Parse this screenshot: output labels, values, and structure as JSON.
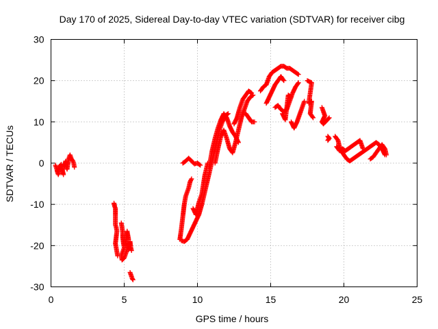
{
  "chart_data": {
    "type": "scatter",
    "title": "Day 170 of 2025, Sidereal Day-to-day VTEC variation (SDTVAR) for receiver cibg",
    "xlabel": "GPS time / hours",
    "ylabel": "SDTVAR / TECUs",
    "xlim": [
      0,
      25
    ],
    "ylim": [
      -30,
      30
    ],
    "xticks": [
      0,
      5,
      10,
      15,
      20,
      25
    ],
    "yticks": [
      -30,
      -20,
      -10,
      0,
      10,
      20,
      30
    ],
    "grid": true,
    "marker": "+",
    "color": "#ff0000",
    "series": [
      {
        "name": "SDTVAR",
        "segments": [
          [
            [
              0.3,
              -0.5
            ],
            [
              0.4,
              -1.5
            ],
            [
              0.45,
              -2.3
            ],
            [
              0.5,
              -2.8
            ],
            [
              0.55,
              -1.8
            ],
            [
              0.6,
              -0.8
            ],
            [
              0.7,
              -0.3
            ],
            [
              0.75,
              -1.2
            ],
            [
              0.8,
              -2.0
            ],
            [
              0.85,
              -2.8
            ]
          ],
          [
            [
              0.9,
              -1.0
            ],
            [
              0.95,
              -0.2
            ],
            [
              1.0,
              0.5
            ],
            [
              1.05,
              -1.0
            ],
            [
              1.1,
              -1.5
            ],
            [
              1.2,
              0.8
            ],
            [
              1.25,
              1.5
            ],
            [
              1.3,
              2.0
            ],
            [
              1.4,
              1.0
            ],
            [
              1.5,
              0.5
            ],
            [
              1.55,
              0.0
            ],
            [
              1.6,
              -1.0
            ]
          ],
          [
            [
              4.3,
              -9.7
            ],
            [
              4.35,
              -10.5
            ],
            [
              4.4,
              -11.0
            ],
            [
              4.4,
              -15.0
            ],
            [
              4.45,
              -15.5
            ],
            [
              4.5,
              -16.5
            ],
            [
              4.4,
              -19.5
            ],
            [
              4.45,
              -20.5
            ],
            [
              4.5,
              -21.5
            ],
            [
              4.55,
              -22.5
            ]
          ],
          [
            [
              4.8,
              -14.5
            ],
            [
              4.85,
              -15.5
            ],
            [
              4.9,
              -17.0
            ],
            [
              4.9,
              -18.0
            ],
            [
              4.95,
              -19.5
            ],
            [
              5.0,
              -20.5
            ],
            [
              4.8,
              -22.5
            ],
            [
              4.85,
              -23.5
            ],
            [
              5.0,
              -23.0
            ],
            [
              5.1,
              -22.0
            ],
            [
              5.2,
              -21.0
            ],
            [
              5.25,
              -19.5
            ],
            [
              5.3,
              -21.0
            ],
            [
              5.35,
              -20.0
            ],
            [
              5.4,
              -19.0
            ],
            [
              5.45,
              -20.5
            ],
            [
              5.5,
              -21.2
            ]
          ],
          [
            [
              5.1,
              -20.0
            ],
            [
              5.2,
              -16.5
            ],
            [
              5.25,
              -17.5
            ],
            [
              5.3,
              -18.5
            ]
          ],
          [
            [
              5.4,
              -26.5
            ],
            [
              5.45,
              -27.0
            ],
            [
              5.5,
              -27.5
            ],
            [
              5.55,
              -28.0
            ],
            [
              5.6,
              -28.3
            ]
          ],
          [
            [
              8.8,
              -18.5
            ],
            [
              8.9,
              -16.0
            ],
            [
              9.0,
              -13.0
            ],
            [
              9.1,
              -10.0
            ],
            [
              9.2,
              -8.0
            ],
            [
              9.4,
              -6.0
            ],
            [
              9.5,
              -4.5
            ],
            [
              9.6,
              -3.8
            ]
          ],
          [
            [
              8.9,
              -18.8
            ],
            [
              9.1,
              -19.0
            ],
            [
              9.3,
              -18.5
            ],
            [
              9.5,
              -17.0
            ],
            [
              9.7,
              -15.5
            ],
            [
              9.9,
              -14.0
            ],
            [
              10.1,
              -12.5
            ],
            [
              10.3,
              -10.0
            ],
            [
              10.5,
              -7.0
            ],
            [
              10.7,
              -4.0
            ],
            [
              10.9,
              -1.0
            ],
            [
              11.1,
              2.0
            ],
            [
              11.3,
              5.0
            ],
            [
              11.5,
              8.0
            ],
            [
              11.7,
              10.0
            ],
            [
              11.9,
              11.5
            ],
            [
              12.1,
              12.0
            ]
          ],
          [
            [
              9.7,
              -11.0
            ],
            [
              9.9,
              -12.5
            ],
            [
              10.1,
              -9.5
            ],
            [
              10.3,
              -7.5
            ],
            [
              10.5,
              -3.0
            ],
            [
              10.7,
              0.0
            ]
          ],
          [
            [
              9.0,
              0.0
            ],
            [
              9.2,
              0.5
            ],
            [
              9.4,
              1.2
            ],
            [
              9.6,
              0.5
            ],
            [
              9.8,
              -0.2
            ],
            [
              10.0,
              0.0
            ],
            [
              10.2,
              -0.5
            ]
          ],
          [
            [
              10.8,
              -1.0
            ],
            [
              11.0,
              3.0
            ],
            [
              11.2,
              6.0
            ],
            [
              11.4,
              8.5
            ],
            [
              11.6,
              10.5
            ],
            [
              11.8,
              12.0
            ],
            [
              12.0,
              11.0
            ],
            [
              12.2,
              9.0
            ],
            [
              12.4,
              7.5
            ],
            [
              12.6,
              6.5
            ],
            [
              12.8,
              5.0
            ]
          ],
          [
            [
              11.2,
              0.0
            ],
            [
              11.4,
              3.5
            ],
            [
              11.6,
              6.5
            ],
            [
              11.8,
              8.0
            ],
            [
              12.0,
              6.0
            ],
            [
              12.2,
              3.5
            ],
            [
              12.4,
              2.5
            ],
            [
              12.6,
              5.0
            ],
            [
              12.8,
              8.0
            ],
            [
              13.0,
              11.0
            ],
            [
              13.2,
              13.0
            ],
            [
              13.4,
              15.0
            ],
            [
              13.6,
              16.0
            ],
            [
              13.8,
              16.5
            ]
          ],
          [
            [
              12.5,
              9.5
            ],
            [
              12.7,
              11.0
            ],
            [
              12.9,
              13.5
            ],
            [
              13.1,
              15.5
            ],
            [
              13.3,
              16.5
            ],
            [
              13.5,
              17.5
            ],
            [
              13.7,
              17.0
            ]
          ],
          [
            [
              13.3,
              12.0
            ],
            [
              13.5,
              11.0
            ],
            [
              13.7,
              10.0
            ],
            [
              13.9,
              10.0
            ]
          ],
          [
            [
              14.3,
              17.5
            ],
            [
              14.5,
              18.5
            ],
            [
              14.7,
              19.0
            ],
            [
              14.9,
              21.0
            ],
            [
              15.1,
              22.0
            ],
            [
              15.3,
              22.5
            ],
            [
              15.5,
              23.0
            ],
            [
              15.7,
              23.5
            ],
            [
              15.9,
              23.5
            ],
            [
              16.1,
              23.0
            ],
            [
              16.3,
              23.0
            ],
            [
              16.5,
              22.5
            ],
            [
              16.7,
              22.0
            ],
            [
              16.9,
              21.5
            ]
          ],
          [
            [
              14.7,
              14.5
            ],
            [
              14.9,
              16.0
            ],
            [
              15.1,
              17.5
            ],
            [
              15.3,
              19.0
            ],
            [
              15.5,
              20.0
            ],
            [
              15.7,
              21.0
            ],
            [
              15.9,
              20.0
            ]
          ],
          [
            [
              15.3,
              13.5
            ],
            [
              15.5,
              14.0
            ],
            [
              15.7,
              13.0
            ],
            [
              15.9,
              12.5
            ],
            [
              16.1,
              13.0
            ],
            [
              16.3,
              15.0
            ],
            [
              16.5,
              17.0
            ],
            [
              16.7,
              18.5
            ],
            [
              16.9,
              19.5
            ]
          ],
          [
            [
              15.8,
              12.0
            ],
            [
              16.0,
              10.5
            ],
            [
              16.2,
              16.5
            ],
            [
              16.4,
              16.0
            ]
          ],
          [
            [
              16.4,
              10.0
            ],
            [
              16.6,
              8.5
            ],
            [
              16.8,
              10.0
            ],
            [
              17.0,
              12.0
            ],
            [
              17.2,
              14.0
            ],
            [
              17.3,
              15.0
            ]
          ],
          [
            [
              17.5,
              20.0
            ],
            [
              17.8,
              19.5
            ],
            [
              17.6,
              14.5
            ],
            [
              17.8,
              15.0
            ],
            [
              17.7,
              12.0
            ],
            [
              17.9,
              11.0
            ]
          ],
          [
            [
              18.5,
              13.5
            ],
            [
              18.6,
              12.5
            ],
            [
              18.7,
              11.5
            ],
            [
              18.5,
              10.0
            ],
            [
              18.6,
              9.5
            ],
            [
              19.0,
              11.0
            ]
          ],
          [
            [
              18.9,
              6.5
            ],
            [
              19.0,
              6.0
            ],
            [
              18.9,
              5.5
            ]
          ],
          [
            [
              19.4,
              6.5
            ],
            [
              19.6,
              5.5
            ],
            [
              19.7,
              4.0
            ],
            [
              19.8,
              3.0
            ],
            [
              20.0,
              2.0
            ],
            [
              20.2,
              1.0
            ],
            [
              20.4,
              0.5
            ],
            [
              20.6,
              1.0
            ],
            [
              20.8,
              1.5
            ],
            [
              21.0,
              2.0
            ],
            [
              21.2,
              2.5
            ],
            [
              21.4,
              3.0
            ],
            [
              21.6,
              3.5
            ],
            [
              21.8,
              4.0
            ],
            [
              22.0,
              4.5
            ],
            [
              22.2,
              5.0
            ],
            [
              22.4,
              4.5
            ],
            [
              22.6,
              3.5
            ],
            [
              22.8,
              2.0
            ]
          ],
          [
            [
              19.5,
              4.0
            ],
            [
              19.7,
              3.0
            ],
            [
              19.9,
              3.5
            ],
            [
              20.1,
              3.0
            ],
            [
              20.3,
              3.5
            ],
            [
              20.5,
              4.0
            ],
            [
              20.7,
              4.5
            ],
            [
              20.9,
              5.0
            ],
            [
              21.1,
              5.5
            ],
            [
              21.3,
              3.5
            ]
          ],
          [
            [
              21.8,
              1.0
            ],
            [
              22.0,
              1.5
            ],
            [
              22.6,
              4.5
            ],
            [
              22.8,
              3.5
            ],
            [
              22.9,
              2.0
            ]
          ]
        ]
      }
    ]
  }
}
